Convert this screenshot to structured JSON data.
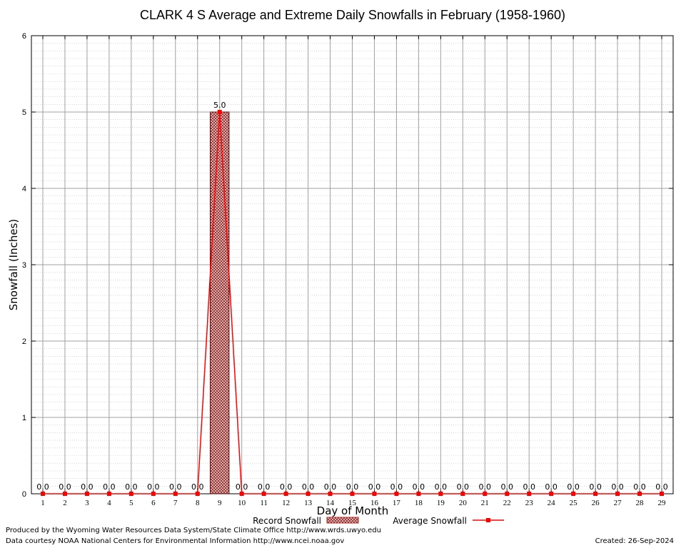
{
  "chart_data": {
    "type": "bar",
    "title": "CLARK 4 S Average and Extreme Daily Snowfalls in February (1958-1960)",
    "xlabel": "Day of Month",
    "ylabel": "Snowfall (Inches)",
    "ylim": [
      0,
      6
    ],
    "yticks": [
      "0",
      "1",
      "2",
      "3",
      "4",
      "5",
      "6"
    ],
    "categories": [
      "1",
      "2",
      "3",
      "4",
      "5",
      "6",
      "7",
      "8",
      "9",
      "10",
      "11",
      "12",
      "13",
      "14",
      "15",
      "16",
      "17",
      "18",
      "19",
      "20",
      "21",
      "22",
      "23",
      "24",
      "25",
      "26",
      "27",
      "28",
      "29"
    ],
    "series": [
      {
        "name": "Record Snowfall",
        "type": "bar",
        "color": "#b22222",
        "values": [
          0,
          0,
          0,
          0,
          0,
          0,
          0,
          0,
          5.0,
          0,
          0,
          0,
          0,
          0,
          0,
          0,
          0,
          0,
          0,
          0,
          0,
          0,
          0,
          0,
          0,
          0,
          0,
          0,
          0
        ],
        "labels": [
          "0.0",
          "0.0",
          "0.0",
          "0.0",
          "0.0",
          "0.0",
          "0.0",
          "0.0",
          "5.0",
          "0.0",
          "0.0",
          "0.0",
          "0.0",
          "0.0",
          "0.0",
          "0.0",
          "0.0",
          "0.0",
          "0.0",
          "0.0",
          "0.0",
          "0.0",
          "0.0",
          "0.0",
          "0.0",
          "0.0",
          "0.0",
          "0.0",
          "0.0"
        ]
      },
      {
        "name": "Average Snowfall",
        "type": "line",
        "color": "#ff0000",
        "values": [
          0,
          0,
          0,
          0,
          0,
          0,
          0,
          0,
          5.0,
          0,
          0,
          0,
          0,
          0,
          0,
          0,
          0,
          0,
          0,
          0,
          0,
          0,
          0,
          0,
          0,
          0,
          0,
          0,
          0
        ]
      }
    ],
    "grid": true,
    "legend": "bottom-center"
  },
  "footer": {
    "produced_by": "Produced by the Wyoming Water Resources Data System/State Climate Office http://www.wrds.uwyo.edu",
    "data_courtesy": "Data courtesy NOAA National Centers for Environmental Information http://www.ncei.noaa.gov",
    "created": "Created: 26-Sep-2024"
  }
}
